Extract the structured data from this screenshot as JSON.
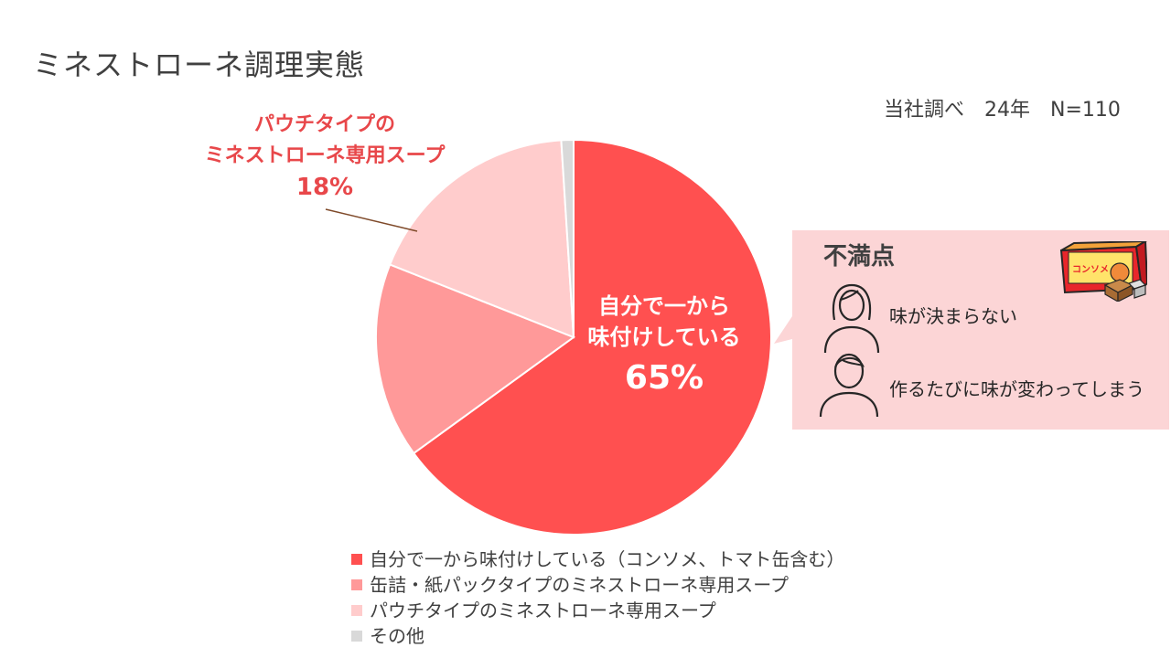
{
  "title": "ミネストローネ調理実態",
  "source_note": "当社調べ　24年　N=110",
  "chart_data": {
    "type": "pie",
    "categories": [
      "自分で一から味付けしている（コンソメ、トマト缶含む）",
      "缶詰・紙パックタイプのミネストローネ専用スープ",
      "パウチタイプのミネストローネ専用スープ",
      "その他"
    ],
    "values": [
      65,
      16,
      18,
      1
    ],
    "colors": [
      "#ff5050",
      "#ff9999",
      "#ffcccc",
      "#d9d9d9"
    ],
    "start_angle_deg": 0,
    "direction": "clockwise",
    "legend_position": "bottom"
  },
  "labels": {
    "self_seasoned": {
      "line1": "自分で一から",
      "line2": "味付けしている",
      "percent": "65%"
    },
    "pouch": {
      "line1": "パウチタイプの",
      "line2": "ミネストローネ専用スープ",
      "percent": "18%"
    }
  },
  "complaints": {
    "title": "不満点",
    "items": [
      "味が決まらない",
      "作るたびに味が変わってしまう"
    ],
    "product_label": "コンソメ",
    "icons": [
      "woman-icon",
      "man-icon",
      "consomme-box-icon"
    ]
  },
  "legend": [
    {
      "label": "自分で一から味付けしている（コンソメ、トマト缶含む）",
      "color": "#ff5050"
    },
    {
      "label": "缶詰・紙パックタイプのミネストローネ専用スープ",
      "color": "#ff9999"
    },
    {
      "label": "パウチタイプのミネストローネ専用スープ",
      "color": "#ffcccc"
    },
    {
      "label": "その他",
      "color": "#d9d9d9"
    }
  ]
}
